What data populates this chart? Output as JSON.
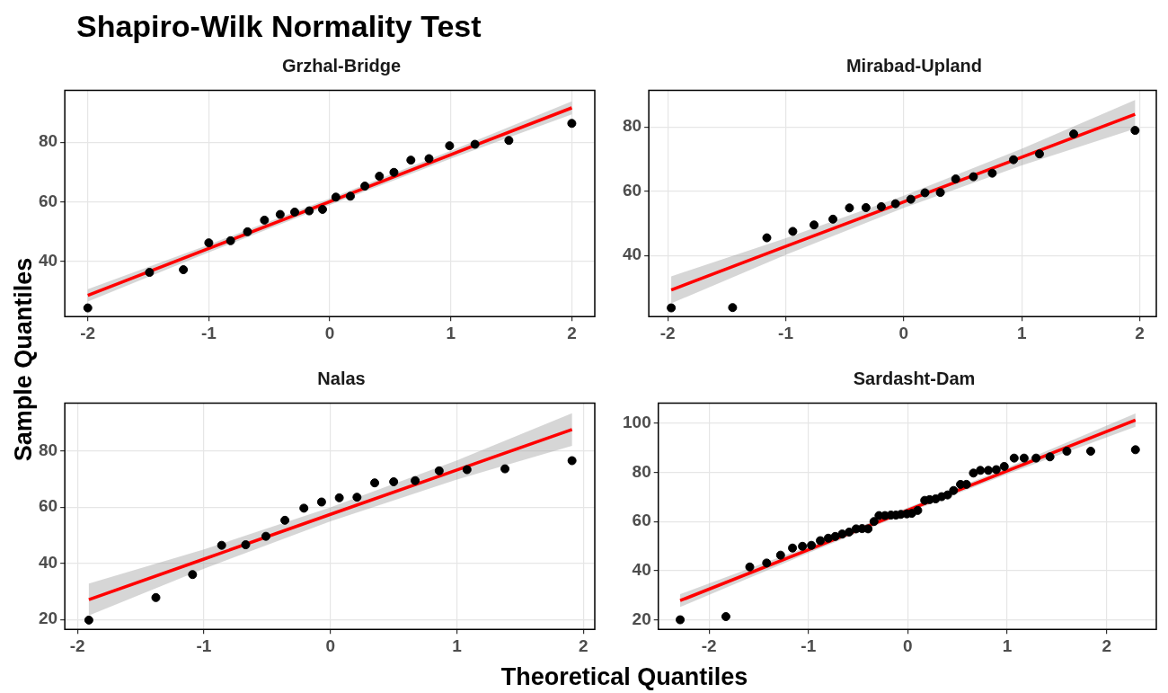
{
  "chart_data": [
    {
      "type": "scatter",
      "title": "Shapiro-Wilk Normality Test",
      "subtitle": "Grzhal-Bridge",
      "xlabel": "Theoretical Quantiles",
      "ylabel": "Sample Quantiles",
      "xlim": [
        -2.19,
        2.19
      ],
      "xticks": [
        -2,
        -1,
        0,
        1,
        2
      ],
      "ylim": [
        21.6,
        97.4
      ],
      "yticks": [
        40,
        60,
        80
      ],
      "grid": true,
      "series": [
        {
          "type": "scatter",
          "color": "#000000",
          "x": [
            -2,
            -1.49,
            -1.21,
            -1.0,
            -0.82,
            -0.68,
            -0.54,
            -0.41,
            -0.29,
            -0.17,
            -0.06,
            0.05,
            0.17,
            0.29,
            0.41,
            0.53,
            0.67,
            0.82,
            0.99,
            1.2,
            1.48,
            2.0
          ],
          "values": [
            24.5,
            36.4,
            37.3,
            46.3,
            47.0,
            50.0,
            53.9,
            55.8,
            56.6,
            57.0,
            57.5,
            61.6,
            61.9,
            65.3,
            68.6,
            69.9,
            74.0,
            74.5,
            78.8,
            79.3,
            80.6,
            86.3
          ]
        },
        {
          "type": "line",
          "color": "#ff0000",
          "x": [
            -2,
            -1,
            0,
            1,
            2
          ],
          "values": [
            28.7,
            44.4,
            60.1,
            75.8,
            91.5
          ],
          "lower": [
            26.6,
            43.1,
            59.0,
            74.5,
            89.3
          ],
          "upper": [
            30.8,
            45.7,
            61.2,
            77.1,
            93.7
          ]
        }
      ]
    },
    {
      "type": "scatter",
      "subtitle": "Mirabad-Upland",
      "xlim": [
        -2.16,
        2.14
      ],
      "xticks": [
        -2,
        -1,
        0,
        1,
        2
      ],
      "ylim": [
        21.0,
        91.4
      ],
      "yticks": [
        40,
        60,
        80
      ],
      "grid": true,
      "series": [
        {
          "type": "scatter",
          "color": "#000000",
          "x": [
            -1.97,
            -1.45,
            -1.16,
            -0.94,
            -0.76,
            -0.6,
            -0.46,
            -0.32,
            -0.19,
            -0.07,
            0.06,
            0.18,
            0.31,
            0.44,
            0.59,
            0.75,
            0.93,
            1.15,
            1.44,
            1.96
          ],
          "values": [
            23.7,
            23.8,
            45.5,
            47.5,
            49.5,
            51.3,
            54.8,
            54.9,
            55.2,
            56.1,
            57.5,
            59.5,
            59.6,
            63.8,
            64.5,
            65.6,
            69.8,
            71.6,
            77.8,
            78.9
          ]
        },
        {
          "type": "line",
          "color": "#ff0000",
          "x": [
            -1.97,
            -1,
            0,
            1,
            1.96
          ],
          "values": [
            29.3,
            42.8,
            56.7,
            70.6,
            83.9
          ],
          "lower": [
            25.1,
            40.2,
            54.8,
            68.0,
            79.4
          ],
          "upper": [
            33.5,
            45.4,
            58.6,
            73.2,
            88.4
          ]
        }
      ]
    },
    {
      "type": "scatter",
      "subtitle": "Nalas",
      "xlim": [
        -2.1,
        2.09
      ],
      "xticks": [
        -2,
        -1,
        0,
        1,
        2
      ],
      "ylim": [
        16.5,
        97.0
      ],
      "yticks": [
        20,
        40,
        60,
        80
      ],
      "grid": true,
      "series": [
        {
          "type": "scatter",
          "color": "#000000",
          "x": [
            -1.91,
            -1.38,
            -1.09,
            -0.86,
            -0.67,
            -0.51,
            -0.36,
            -0.21,
            -0.07,
            0.07,
            0.21,
            0.35,
            0.5,
            0.67,
            0.86,
            1.08,
            1.38,
            1.91
          ],
          "values": [
            19.8,
            27.8,
            36.0,
            46.4,
            46.6,
            49.6,
            55.3,
            59.6,
            61.8,
            63.3,
            63.5,
            68.6,
            69.0,
            69.4,
            72.9,
            73.3,
            73.6,
            76.5
          ]
        },
        {
          "type": "line",
          "color": "#ff0000",
          "x": [
            -1.91,
            -1,
            0,
            1,
            1.91
          ],
          "values": [
            27.1,
            41.5,
            57.4,
            73.2,
            87.6
          ],
          "lower": [
            21.4,
            38.1,
            54.9,
            69.8,
            81.8
          ],
          "upper": [
            32.8,
            44.9,
            59.9,
            76.6,
            93.4
          ]
        }
      ]
    },
    {
      "type": "scatter",
      "subtitle": "Sardasht-Dam",
      "xlim": [
        -2.51,
        2.5
      ],
      "xticks": [
        -2,
        -1,
        0,
        1,
        2
      ],
      "ylim": [
        16.1,
        108.2
      ],
      "yticks": [
        20,
        40,
        60,
        80,
        100
      ],
      "grid": true,
      "series": [
        {
          "type": "scatter",
          "color": "#000000",
          "x": [
            -2.29,
            -1.83,
            -1.59,
            -1.42,
            -1.28,
            -1.16,
            -1.06,
            -0.97,
            -0.88,
            -0.8,
            -0.73,
            -0.66,
            -0.59,
            -0.52,
            -0.46,
            -0.4,
            -0.34,
            -0.29,
            -0.23,
            -0.17,
            -0.12,
            -0.07,
            -0.01,
            0.04,
            0.1,
            0.17,
            0.22,
            0.28,
            0.34,
            0.4,
            0.46,
            0.53,
            0.59,
            0.66,
            0.73,
            0.81,
            0.89,
            0.97,
            1.07,
            1.17,
            1.29,
            1.43,
            1.6,
            1.84,
            2.29
          ],
          "values": [
            20.0,
            21.3,
            41.5,
            43.1,
            46.3,
            49.2,
            49.9,
            50.3,
            52.2,
            53.2,
            53.9,
            54.9,
            55.7,
            57.0,
            57.1,
            57.0,
            60.0,
            62.4,
            62.4,
            62.6,
            62.6,
            62.9,
            63.1,
            63.3,
            64.5,
            68.6,
            68.9,
            69.2,
            70.1,
            70.8,
            72.6,
            75.1,
            75.1,
            79.7,
            80.8,
            80.8,
            81.1,
            82.4,
            85.8,
            85.8,
            85.8,
            86.3,
            88.6,
            88.6,
            89.2
          ]
        },
        {
          "type": "line",
          "color": "#ff0000",
          "x": [
            -2.29,
            -1,
            0,
            1,
            2.29
          ],
          "values": [
            27.8,
            48.5,
            64.6,
            80.6,
            101.3
          ],
          "lower": [
            25.2,
            47.2,
            63.6,
            79.3,
            98.6
          ],
          "upper": [
            30.4,
            49.8,
            65.6,
            81.9,
            104.0
          ]
        }
      ]
    }
  ]
}
